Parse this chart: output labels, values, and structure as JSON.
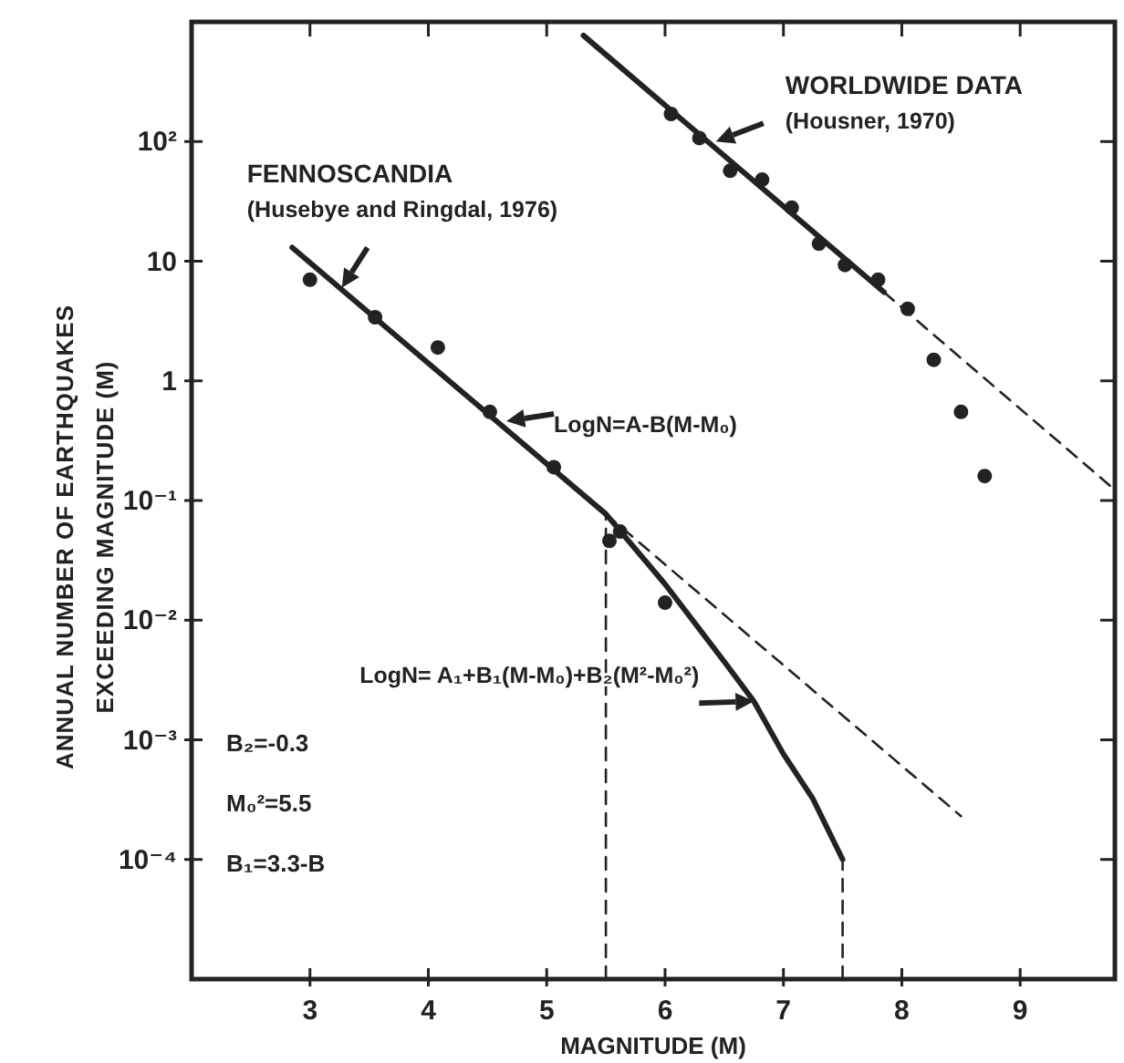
{
  "chart_data": {
    "type": "scatter",
    "xlabel": "MAGNITUDE (M)",
    "ylabel": "ANNUAL NUMBER OF EARTHQUAKES\nEXCEEDING MAGNITUDE (M)",
    "log": "y",
    "xlim": [
      2,
      9.8
    ],
    "ylim": [
      1e-05,
      1000
    ],
    "xticks": [
      3,
      4,
      5,
      6,
      7,
      8,
      9
    ],
    "yticks": [
      {
        "value": 100,
        "label": "10²"
      },
      10,
      1,
      {
        "value": 0.1,
        "label": "10⁻¹"
      },
      {
        "value": 0.01,
        "label": "10⁻²"
      },
      {
        "value": 0.001,
        "label": "10⁻³"
      },
      {
        "value": 0.0001,
        "label": "10⁻⁴"
      }
    ],
    "grid": false,
    "marker": "circle",
    "series": [
      {
        "color": "#222222",
        "x": [
          3.0,
          3.55,
          4.08,
          4.52,
          5.06,
          5.53,
          5.62,
          6.0
        ],
        "values": [
          7,
          3.4,
          1.9,
          0.55,
          0.19,
          0.046,
          0.055,
          0.014
        ]
      },
      {
        "color": "#222222",
        "x": [
          6.05,
          6.29,
          6.55,
          6.82,
          7.07,
          7.3,
          7.52,
          7.8,
          8.05,
          8.27,
          8.5,
          8.7
        ],
        "values": [
          170,
          107,
          57,
          48,
          28,
          14,
          9.3,
          7,
          4,
          1.5,
          0.55,
          0.16
        ]
      },
      {
        "type": "line",
        "color": "#222222",
        "line_style": "solid",
        "marker": "none",
        "x": [
          2.85,
          5.5,
          6.0,
          6.5,
          6.75,
          7.0,
          7.25,
          7.5
        ],
        "values": [
          13,
          0.077,
          0.02,
          0.0045,
          0.0021,
          0.00076,
          0.00032,
          0.0001
        ]
      },
      {
        "type": "line",
        "color": "#222222",
        "line_style": "dashed",
        "marker": "none",
        "x": [
          5.5,
          8.5
        ],
        "values": [
          0.077,
          0.00023
        ]
      },
      {
        "type": "line",
        "color": "#222222",
        "line_style": "solid",
        "marker": "none",
        "x": [
          5.31,
          7.85
        ],
        "values": [
          770,
          5.5
        ]
      },
      {
        "type": "line",
        "color": "#222222",
        "line_style": "dashed",
        "marker": "none",
        "x": [
          7.85,
          9.77
        ],
        "values": [
          5.5,
          0.13
        ]
      },
      {
        "type": "line",
        "color": "#222222",
        "line_style": "dashed",
        "marker": "none",
        "x": [
          5.5,
          5.5
        ],
        "values": [
          1e-05,
          0.077
        ]
      },
      {
        "type": "line",
        "color": "#222222",
        "line_style": "dashed",
        "marker": "none",
        "x": [
          7.5,
          7.5
        ],
        "values": [
          1e-05,
          0.0001
        ]
      }
    ],
    "annotations": [
      {
        "text": "FENNOSCANDIA\n(Husebye and Ringdal, 1976)",
        "x": 3.27,
        "y": 6
      },
      {
        "text": "WORLDWIDE DATA\n(Housner, 1970)",
        "x": 6.43,
        "y": 100
      },
      {
        "text": "LogN=A-B(M-M₀)",
        "x": 4.66,
        "y": 0.46
      },
      {
        "text": "LogN= A₁+B₁(M-M₀)+B₂(M²-M₀²)",
        "x": 6.75,
        "y": 0.0021
      },
      "B₂=-0.3",
      "M₀²=5.5",
      "B₁=3.3-B"
    ]
  }
}
